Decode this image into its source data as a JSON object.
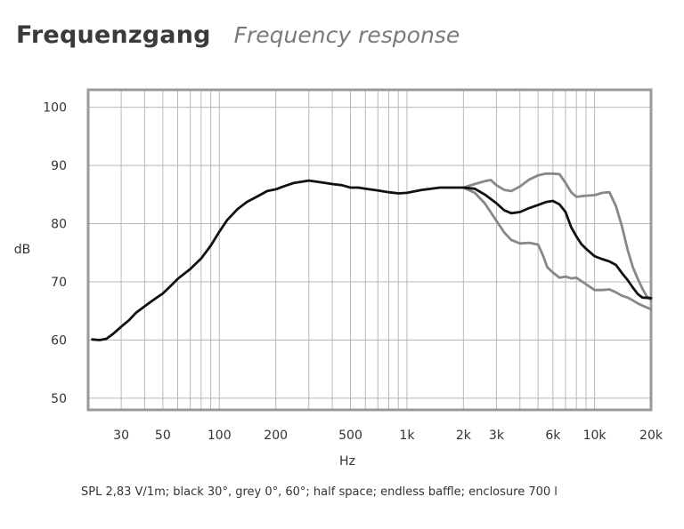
{
  "header": {
    "title": "Frequenzgang",
    "subtitle": "Frequency response"
  },
  "caption": "SPL 2,83 V/1m; black 30°, grey 0°, 60°; half space; endless baffle; enclosure 700 l",
  "colors": {
    "black_series": "#111111",
    "grey_series": "#888888",
    "grid": "#b8b8b8",
    "frame": "#999999"
  },
  "chart_data": {
    "type": "line",
    "title": "Frequenzgang",
    "subtitle": "Frequency response",
    "xlabel": "Hz",
    "ylabel": "dB",
    "xscale": "log",
    "xlim": [
      20,
      20000
    ],
    "ylim": [
      48,
      103
    ],
    "grid": true,
    "x_ticks": [
      {
        "value": 30,
        "label": "30"
      },
      {
        "value": 50,
        "label": "50"
      },
      {
        "value": 100,
        "label": "100"
      },
      {
        "value": 200,
        "label": "200"
      },
      {
        "value": 500,
        "label": "500"
      },
      {
        "value": 1000,
        "label": "1k"
      },
      {
        "value": 2000,
        "label": "2k"
      },
      {
        "value": 3000,
        "label": "3k"
      },
      {
        "value": 6000,
        "label": "6k"
      },
      {
        "value": 10000,
        "label": "10k"
      },
      {
        "value": 20000,
        "label": "20k"
      }
    ],
    "y_ticks": [
      {
        "value": 50,
        "label": "50"
      },
      {
        "value": 60,
        "label": "60"
      },
      {
        "value": 70,
        "label": "70"
      },
      {
        "value": 80,
        "label": "80"
      },
      {
        "value": 90,
        "label": "90"
      },
      {
        "value": 100,
        "label": "100"
      }
    ],
    "series": [
      {
        "angle": "0°",
        "color": "#888888",
        "points": [
          [
            2000,
            86.2
          ],
          [
            2300,
            86.8
          ],
          [
            2600,
            87.3
          ],
          [
            2800,
            87.5
          ],
          [
            3000,
            86.6
          ],
          [
            3300,
            85.8
          ],
          [
            3600,
            85.6
          ],
          [
            4000,
            86.4
          ],
          [
            4500,
            87.6
          ],
          [
            5000,
            88.3
          ],
          [
            5500,
            88.6
          ],
          [
            6000,
            88.6
          ],
          [
            6500,
            88.5
          ],
          [
            7000,
            87.0
          ],
          [
            7500,
            85.4
          ],
          [
            8000,
            84.6
          ],
          [
            9000,
            84.8
          ],
          [
            10000,
            84.9
          ],
          [
            11000,
            85.3
          ],
          [
            12000,
            85.4
          ],
          [
            13000,
            83.0
          ],
          [
            14000,
            79.5
          ],
          [
            15000,
            75.5
          ],
          [
            16000,
            72.5
          ],
          [
            17000,
            70.5
          ],
          [
            18000,
            68.8
          ],
          [
            19000,
            67.5
          ],
          [
            20000,
            66.9
          ]
        ]
      },
      {
        "angle": "30°",
        "color": "#111111",
        "points": [
          [
            21,
            60.1
          ],
          [
            23,
            60.0
          ],
          [
            25,
            60.2
          ],
          [
            27,
            61.0
          ],
          [
            30,
            62.3
          ],
          [
            33,
            63.4
          ],
          [
            36,
            64.7
          ],
          [
            40,
            65.8
          ],
          [
            45,
            67.0
          ],
          [
            50,
            68.0
          ],
          [
            55,
            69.3
          ],
          [
            60,
            70.5
          ],
          [
            70,
            72.2
          ],
          [
            80,
            74.0
          ],
          [
            90,
            76.2
          ],
          [
            100,
            78.6
          ],
          [
            110,
            80.6
          ],
          [
            125,
            82.5
          ],
          [
            140,
            83.7
          ],
          [
            160,
            84.7
          ],
          [
            180,
            85.6
          ],
          [
            200,
            85.9
          ],
          [
            220,
            86.4
          ],
          [
            250,
            87.0
          ],
          [
            300,
            87.4
          ],
          [
            350,
            87.1
          ],
          [
            400,
            86.8
          ],
          [
            450,
            86.6
          ],
          [
            500,
            86.2
          ],
          [
            550,
            86.2
          ],
          [
            600,
            86.0
          ],
          [
            700,
            85.7
          ],
          [
            800,
            85.4
          ],
          [
            900,
            85.2
          ],
          [
            1000,
            85.3
          ],
          [
            1200,
            85.8
          ],
          [
            1500,
            86.2
          ],
          [
            2000,
            86.2
          ],
          [
            2300,
            86.0
          ],
          [
            2600,
            85.0
          ],
          [
            3000,
            83.5
          ],
          [
            3300,
            82.3
          ],
          [
            3600,
            81.8
          ],
          [
            4000,
            82.0
          ],
          [
            4500,
            82.7
          ],
          [
            5000,
            83.2
          ],
          [
            5500,
            83.7
          ],
          [
            6000,
            83.9
          ],
          [
            6500,
            83.3
          ],
          [
            7000,
            82.0
          ],
          [
            7500,
            79.4
          ],
          [
            8000,
            77.8
          ],
          [
            8500,
            76.5
          ],
          [
            9000,
            75.7
          ],
          [
            10000,
            74.4
          ],
          [
            11000,
            73.9
          ],
          [
            12000,
            73.5
          ],
          [
            13000,
            72.9
          ],
          [
            14000,
            71.5
          ],
          [
            15000,
            70.3
          ],
          [
            16000,
            69.0
          ],
          [
            17000,
            67.9
          ],
          [
            18000,
            67.3
          ],
          [
            20000,
            67.2
          ]
        ]
      },
      {
        "angle": "60°",
        "color": "#888888",
        "points": [
          [
            2000,
            86.2
          ],
          [
            2300,
            85.3
          ],
          [
            2600,
            83.5
          ],
          [
            3000,
            80.5
          ],
          [
            3300,
            78.5
          ],
          [
            3600,
            77.2
          ],
          [
            4000,
            76.6
          ],
          [
            4500,
            76.7
          ],
          [
            5000,
            76.4
          ],
          [
            5300,
            74.6
          ],
          [
            5600,
            72.5
          ],
          [
            6000,
            71.6
          ],
          [
            6500,
            70.7
          ],
          [
            7000,
            70.9
          ],
          [
            7500,
            70.6
          ],
          [
            8000,
            70.7
          ],
          [
            9000,
            69.6
          ],
          [
            10000,
            68.6
          ],
          [
            11000,
            68.6
          ],
          [
            12000,
            68.7
          ],
          [
            13000,
            68.2
          ],
          [
            14000,
            67.6
          ],
          [
            15000,
            67.3
          ],
          [
            16000,
            66.8
          ],
          [
            17000,
            66.3
          ],
          [
            18000,
            65.9
          ],
          [
            20000,
            65.3
          ]
        ]
      }
    ]
  }
}
